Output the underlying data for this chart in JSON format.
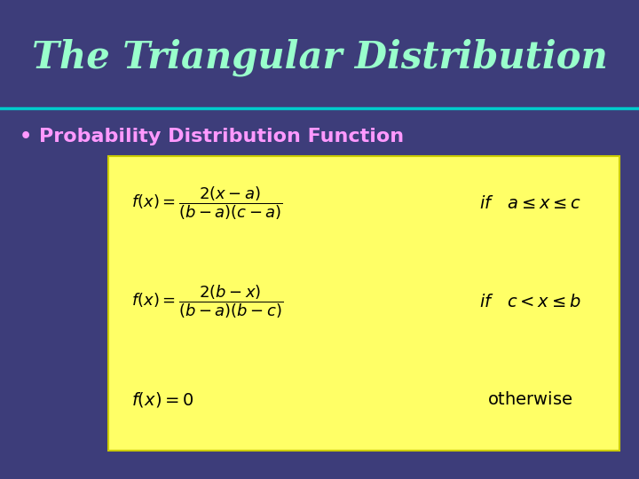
{
  "title": "The Triangular Distribution",
  "subtitle": "Probability Distribution Function",
  "bg_color": "#3d3d7a",
  "title_color": "#99ffcc",
  "subtitle_color": "#ff99ff",
  "separator_color": "#00cccc",
  "box_color": "#ffff66",
  "box_edge_color": "#cccc00"
}
